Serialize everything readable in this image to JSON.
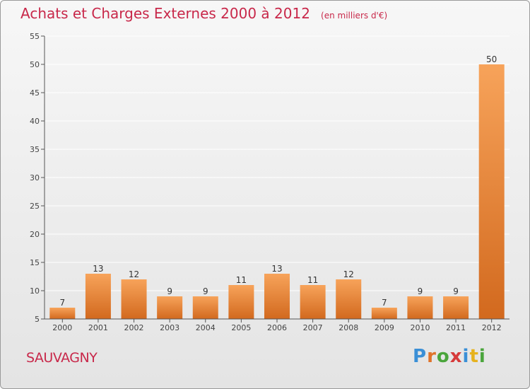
{
  "title": "Achats et Charges Externes 2000 à 2012",
  "unit_note": "(en milliers d'€)",
  "commune": "SAUVAGNY",
  "logo": {
    "letters": [
      {
        "ch": "P",
        "color": "#3a8fd6"
      },
      {
        "ch": "r",
        "color": "#e0732a"
      },
      {
        "ch": "o",
        "color": "#4aa53c"
      },
      {
        "ch": "x",
        "color": "#d63a3a"
      },
      {
        "ch": "i",
        "color": "#3a8fd6"
      },
      {
        "ch": "t",
        "color": "#e6b21e"
      },
      {
        "ch": "i",
        "color": "#4aa53c"
      }
    ]
  },
  "colors": {
    "bar_top": "#f7a35a",
    "bar_bottom": "#d2691e",
    "title": "#c8284a",
    "grid": "#ffffff"
  },
  "chart_data": {
    "type": "bar",
    "categories": [
      "2000",
      "2001",
      "2002",
      "2003",
      "2004",
      "2005",
      "2006",
      "2007",
      "2008",
      "2009",
      "2010",
      "2011",
      "2012"
    ],
    "values": [
      7,
      13,
      12,
      9,
      9,
      11,
      13,
      11,
      12,
      7,
      9,
      9,
      50
    ],
    "ylim": [
      5,
      55
    ],
    "yticks": [
      5,
      10,
      15,
      20,
      25,
      30,
      35,
      40,
      45,
      50,
      55
    ],
    "grid": true
  }
}
